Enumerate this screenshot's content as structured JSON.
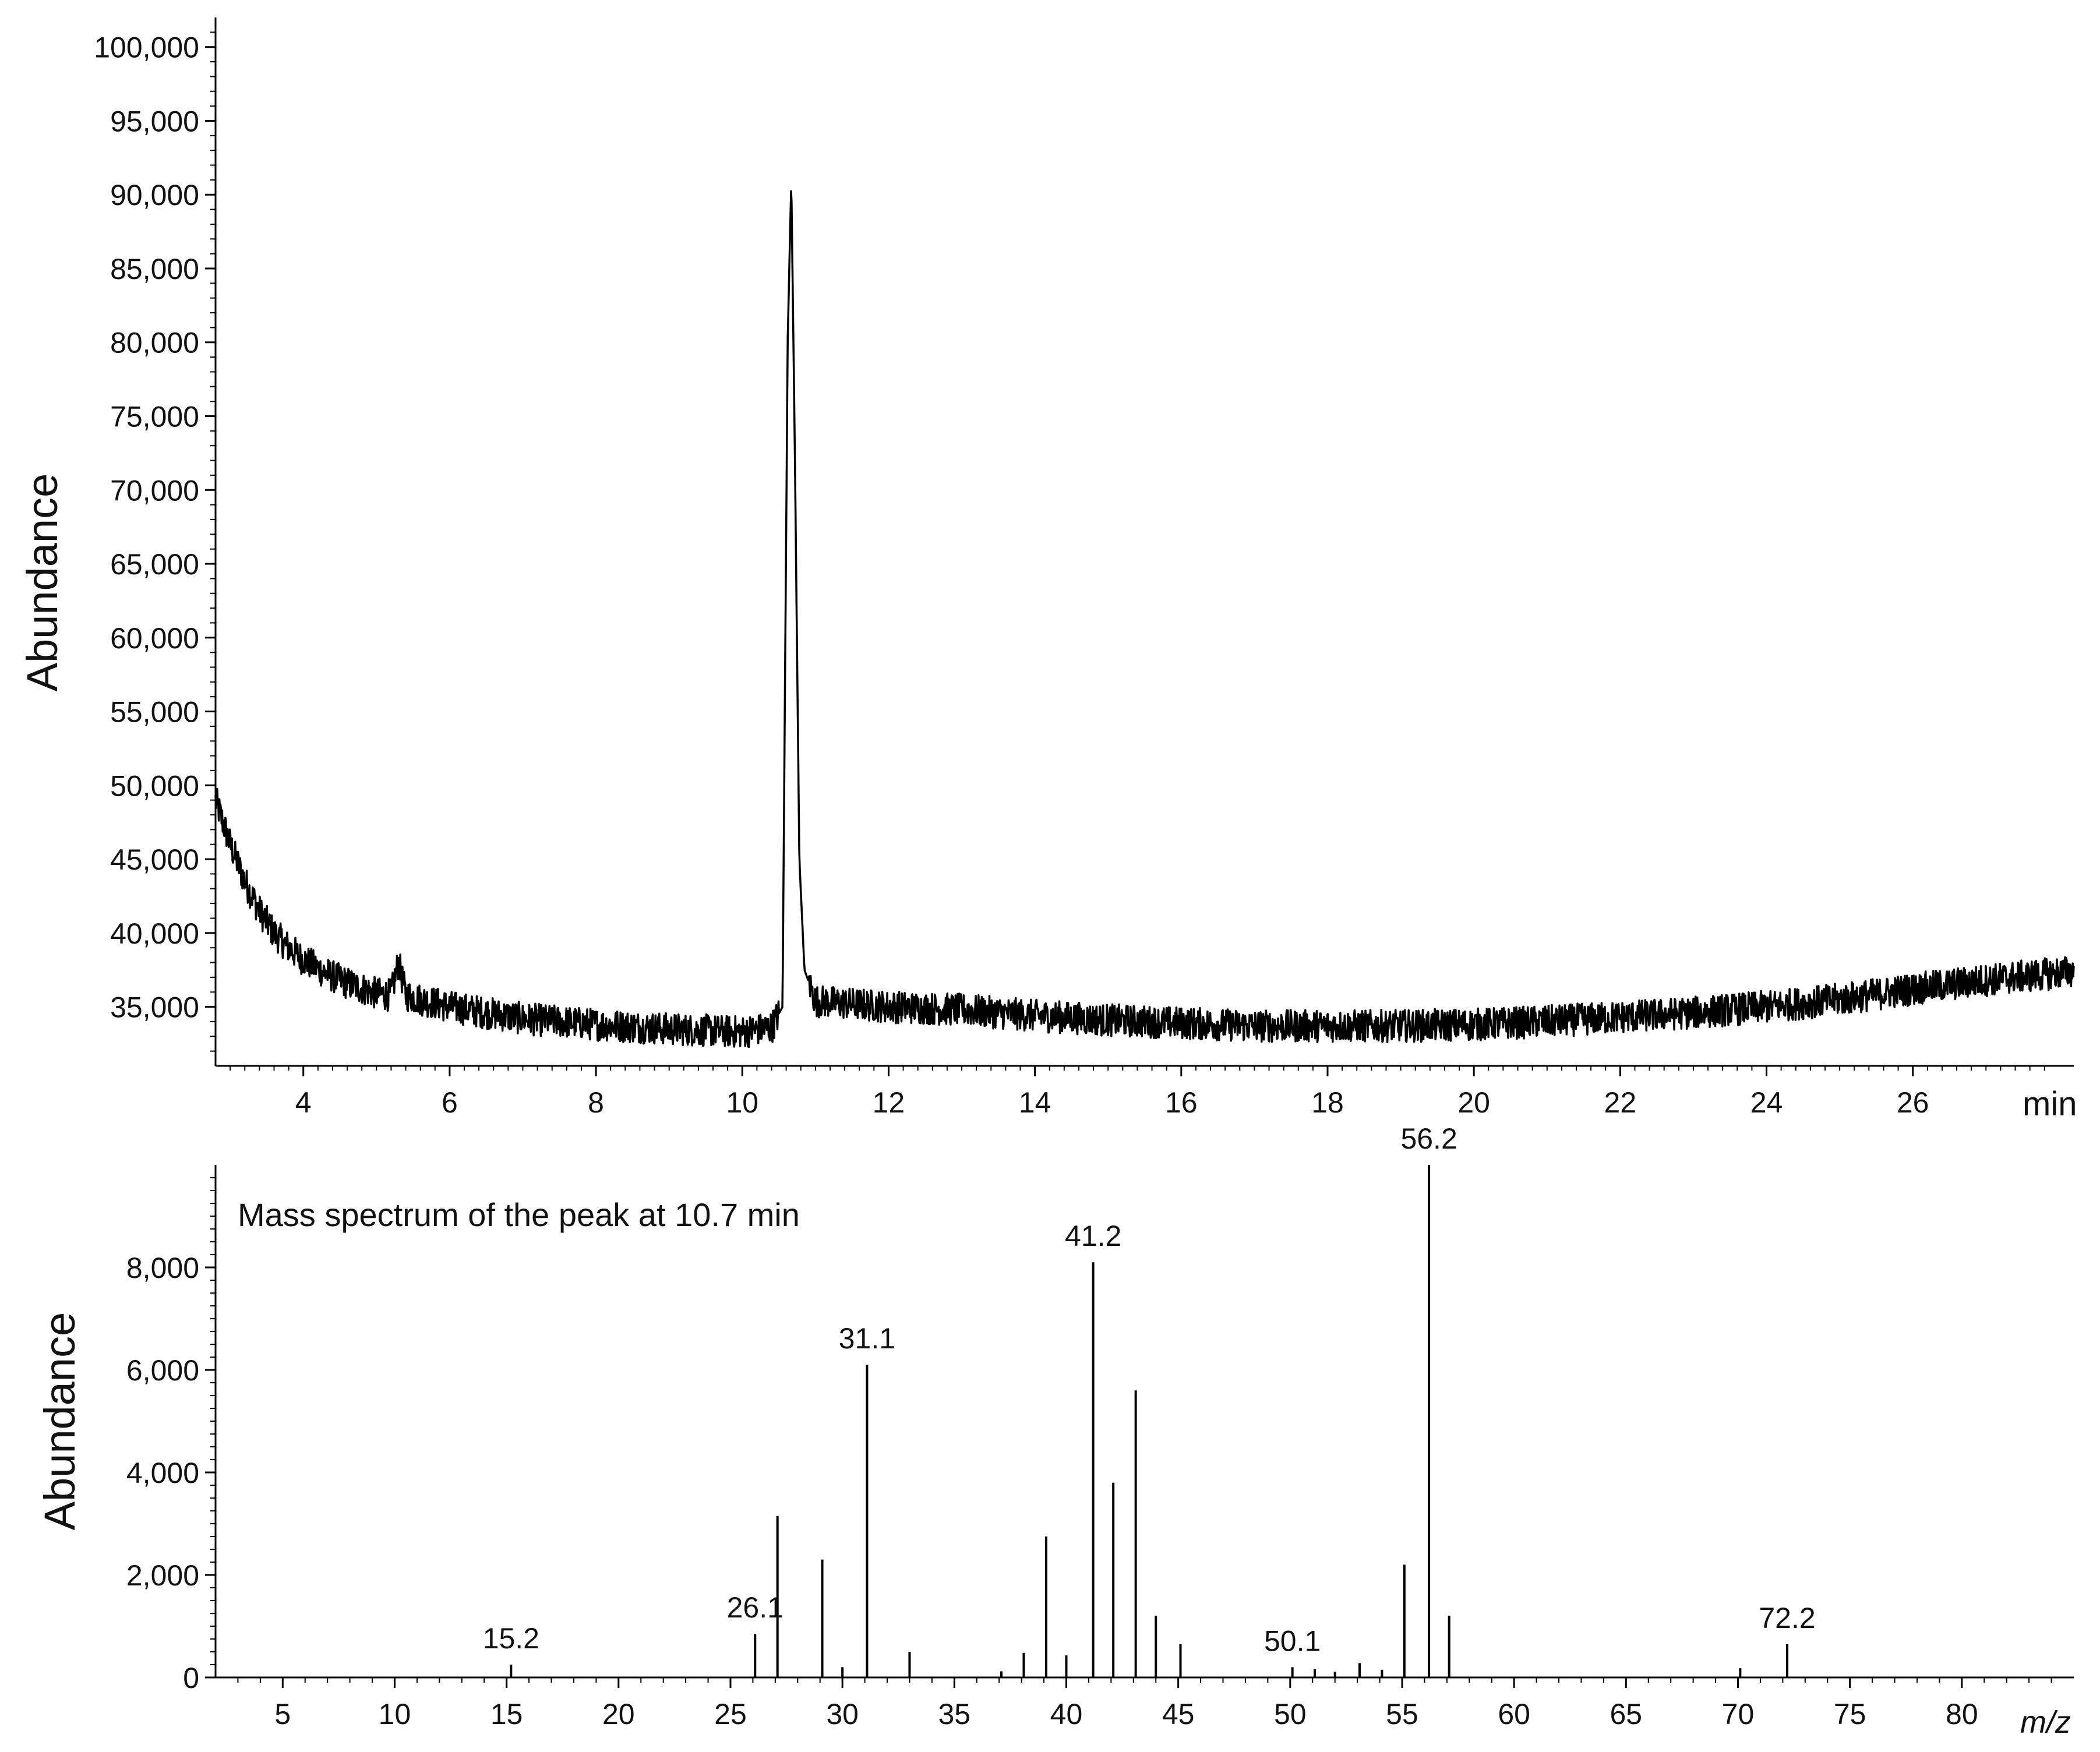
{
  "chart_data": [
    {
      "type": "line",
      "ylabel": "Abundance",
      "xunit": "min",
      "xlim": [
        2.8,
        28.2
      ],
      "ylim": [
        31000,
        102000
      ],
      "xticks": [
        4,
        6,
        8,
        10,
        12,
        14,
        16,
        18,
        20,
        22,
        24,
        26
      ],
      "xtick_labels": [
        "4",
        "6",
        "8",
        "10",
        "12",
        "14",
        "16",
        "18",
        "20",
        "22",
        "24",
        "26"
      ],
      "yticks": [
        35000,
        40000,
        45000,
        50000,
        55000,
        60000,
        65000,
        70000,
        75000,
        80000,
        85000,
        90000,
        95000,
        100000
      ],
      "ytick_labels": [
        "35,000",
        "40,000",
        "45,000",
        "50,000",
        "55,000",
        "60,000",
        "65,000",
        "70,000",
        "75,000",
        "80,000",
        "85,000",
        "90,000",
        "95,000",
        "100,000"
      ],
      "grid": false,
      "series": [
        {
          "color": "#000000",
          "x": [
            2.8,
            3.0,
            3.2,
            3.4,
            3.6,
            3.8,
            4.0,
            4.3,
            4.6,
            5.0,
            5.2,
            5.3,
            5.4,
            5.6,
            6.0,
            7.0,
            8.0,
            9.0,
            10.0,
            10.4,
            10.55,
            10.62,
            10.67,
            10.72,
            10.78,
            10.85,
            11.0,
            12.0,
            13.0,
            14.0,
            15.0,
            16.0,
            17.0,
            18.0,
            19.0,
            20.0,
            21.0,
            22.0,
            23.0,
            24.0,
            25.0,
            26.0,
            27.0,
            28.2
          ],
          "y": [
            49000,
            46000,
            43500,
            41500,
            40000,
            39000,
            38200,
            37300,
            36600,
            35900,
            35800,
            38000,
            35800,
            35500,
            35000,
            34200,
            33800,
            33500,
            33300,
            33600,
            35000,
            80000,
            91000,
            72000,
            45000,
            37500,
            35400,
            35000,
            34800,
            34400,
            34100,
            33900,
            33700,
            33700,
            33700,
            33800,
            34000,
            34300,
            34600,
            35000,
            35500,
            36200,
            36800,
            37400
          ]
        }
      ]
    },
    {
      "type": "bar",
      "title": "Mass spectrum of the peak at 10.7 min",
      "ylabel": "Abundance",
      "xunit": "m/z",
      "xlim": [
        2,
        85
      ],
      "ylim": [
        0,
        10000
      ],
      "xticks": [
        5,
        10,
        15,
        20,
        25,
        30,
        35,
        40,
        45,
        50,
        55,
        60,
        65,
        70,
        75,
        80
      ],
      "xtick_labels": [
        "5",
        "10",
        "15",
        "20",
        "25",
        "30",
        "35",
        "40",
        "45",
        "50",
        "55",
        "60",
        "65",
        "70",
        "75",
        "80"
      ],
      "yticks": [
        0,
        2000,
        4000,
        6000,
        8000
      ],
      "ytick_labels": [
        "0",
        "2,000",
        "4,000",
        "6,000",
        "8,000"
      ],
      "grid": false,
      "x": [
        15.2,
        26.1,
        27.1,
        29.1,
        30.0,
        31.1,
        33.0,
        37.1,
        38.1,
        39.1,
        40.0,
        41.2,
        42.1,
        43.1,
        44.0,
        45.1,
        50.1,
        51.1,
        52.0,
        53.1,
        54.1,
        55.1,
        56.2,
        57.1,
        70.1,
        72.2
      ],
      "values": [
        250,
        850,
        3150,
        2300,
        200,
        6100,
        500,
        120,
        480,
        2750,
        430,
        8100,
        3800,
        5600,
        1200,
        650,
        200,
        160,
        110,
        280,
        150,
        2200,
        10000,
        1200,
        180,
        650
      ],
      "peak_labels": [
        {
          "x": 15.2,
          "text": "15.2"
        },
        {
          "x": 26.1,
          "text": "26.1"
        },
        {
          "x": 31.1,
          "text": "31.1"
        },
        {
          "x": 41.2,
          "text": "41.2"
        },
        {
          "x": 50.1,
          "text": "50.1"
        },
        {
          "x": 56.2,
          "text": "56.2"
        },
        {
          "x": 72.2,
          "text": "72.2"
        }
      ]
    }
  ]
}
